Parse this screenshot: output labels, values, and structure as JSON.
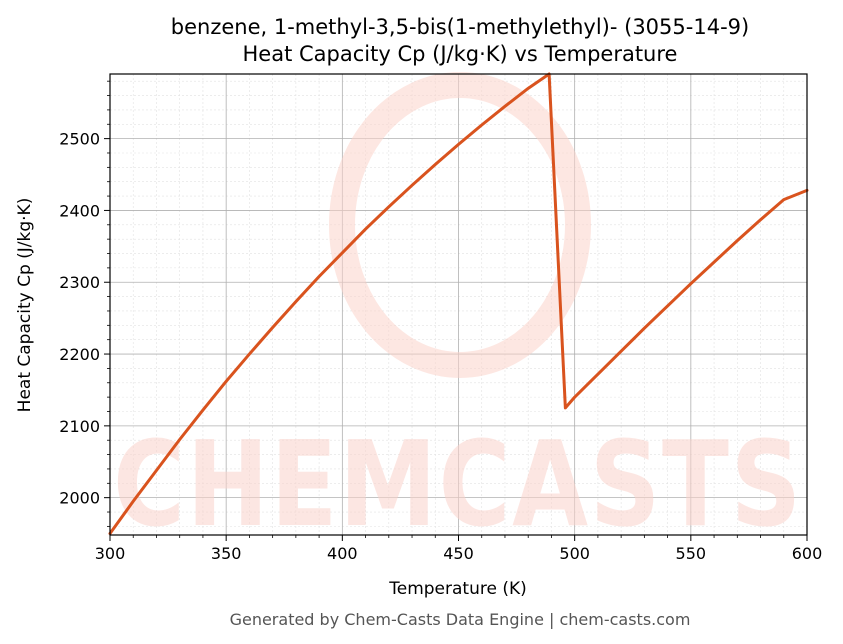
{
  "title_line1": "benzene, 1-methyl-3,5-bis(1-methylethyl)- (3055-14-9)",
  "title_line2": "Heat Capacity Cp (J/kg·K) vs Temperature",
  "footer": "Generated by Chem-Casts Data Engine | chem-casts.com",
  "watermark": "CHEMCASTS",
  "colors": {
    "line": "#d9531e",
    "grid_major": "#b0b0b0",
    "grid_minor": "#e2e2e2",
    "watermark": "#fbd3cb"
  },
  "chart_data": {
    "type": "line",
    "title": "benzene, 1-methyl-3,5-bis(1-methylethyl)- (3055-14-9)\nHeat Capacity Cp (J/kg·K) vs Temperature",
    "xlabel": "Temperature (K)",
    "ylabel": "Heat Capacity Cp (J/kg·K)",
    "xlim": [
      300,
      600
    ],
    "ylim": [
      1948,
      2590
    ],
    "x_ticks": [
      300,
      350,
      400,
      450,
      500,
      550,
      600
    ],
    "y_ticks": [
      2000,
      2100,
      2200,
      2300,
      2400,
      2500
    ],
    "grid": true,
    "legend": "none",
    "series": [
      {
        "x": [
          300,
          310,
          320,
          330,
          340,
          350,
          360,
          370,
          380,
          390,
          400,
          410,
          420,
          430,
          440,
          450,
          460,
          470,
          480,
          489,
          496,
          500,
          510,
          520,
          530,
          540,
          550,
          560,
          570,
          580,
          590,
          600
        ],
        "y": [
          1950,
          1995,
          2038,
          2081,
          2122,
          2162,
          2200,
          2237,
          2273,
          2308,
          2341,
          2374,
          2405,
          2435,
          2464,
          2492,
          2519,
          2545,
          2570,
          2590,
          2125,
          2140,
          2172,
          2204,
          2236,
          2267,
          2298,
          2328,
          2358,
          2387,
          2415,
          2428
        ]
      }
    ]
  }
}
